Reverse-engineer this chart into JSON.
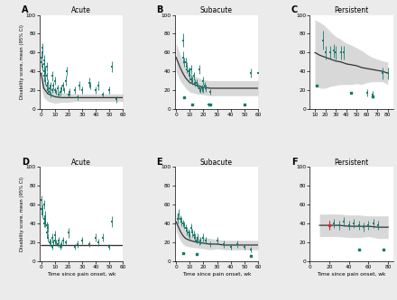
{
  "figure_background": "#ebebeb",
  "panel_background": "#ffffff",
  "panels": [
    {
      "label": "A",
      "title": "Acute",
      "row": 0,
      "col": 0,
      "xlim": [
        -1,
        60
      ],
      "ylim": [
        0,
        100
      ],
      "xticks": [
        0,
        10,
        20,
        30,
        40,
        50,
        60
      ],
      "yticks": [
        0,
        20,
        40,
        60,
        80,
        100
      ],
      "curve_color": "#333333",
      "ci_color": "#b8b8b8",
      "scatter_color": "#1a7a6e",
      "line_color": "#cc3333",
      "has_ci_band": true,
      "scatter_x": [
        0.5,
        0.5,
        1,
        1,
        1,
        2,
        2,
        2,
        2,
        3,
        3,
        3,
        4,
        4,
        4,
        5,
        5,
        6,
        6,
        7,
        7,
        8,
        8,
        9,
        10,
        10,
        11,
        12,
        13,
        14,
        15,
        16,
        17,
        18,
        19,
        20,
        21,
        25,
        27,
        28,
        30,
        35,
        36,
        40,
        42,
        45,
        50,
        52,
        55
      ],
      "scatter_y": [
        50,
        55,
        45,
        60,
        65,
        35,
        40,
        48,
        52,
        30,
        38,
        42,
        25,
        35,
        45,
        20,
        28,
        18,
        22,
        15,
        25,
        35,
        20,
        25,
        30,
        20,
        18,
        22,
        15,
        18,
        22,
        25,
        20,
        30,
        40,
        15,
        18,
        20,
        12,
        25,
        20,
        28,
        25,
        20,
        25,
        15,
        20,
        45,
        10
      ],
      "scatter_yerr": [
        5,
        5,
        4,
        5,
        5,
        4,
        4,
        5,
        5,
        4,
        4,
        4,
        4,
        4,
        5,
        4,
        4,
        3,
        4,
        3,
        4,
        5,
        3,
        4,
        4,
        3,
        3,
        4,
        3,
        4,
        4,
        4,
        3,
        5,
        5,
        3,
        4,
        4,
        3,
        5,
        4,
        5,
        4,
        4,
        5,
        3,
        4,
        6,
        3
      ],
      "curve_x": [
        0,
        2,
        5,
        10,
        15,
        20,
        25,
        30,
        35,
        40,
        45,
        50,
        55,
        60
      ],
      "curve_y": [
        38,
        22,
        16,
        13,
        12,
        12,
        12,
        12,
        12,
        12,
        12,
        12,
        12,
        12
      ],
      "ci_upper": [
        52,
        32,
        24,
        20,
        17,
        17,
        16,
        16,
        16,
        16,
        16,
        16,
        16,
        16
      ],
      "ci_lower": [
        24,
        12,
        8,
        6,
        7,
        7,
        8,
        8,
        8,
        8,
        8,
        8,
        8,
        8
      ]
    },
    {
      "label": "B",
      "title": "Subacute",
      "row": 0,
      "col": 1,
      "xlim": [
        -1,
        60
      ],
      "ylim": [
        0,
        100
      ],
      "xticks": [
        0,
        10,
        20,
        30,
        40,
        50,
        60
      ],
      "yticks": [
        0,
        20,
        40,
        60,
        80,
        100
      ],
      "curve_color": "#333333",
      "ci_color": "#b8b8b8",
      "scatter_color": "#1a7a6e",
      "line_color": "#cc3333",
      "has_ci_band": true,
      "scatter_x": [
        5,
        5,
        6,
        7,
        8,
        8,
        9,
        10,
        10,
        11,
        11,
        12,
        13,
        14,
        15,
        16,
        17,
        17,
        18,
        19,
        20,
        20,
        21,
        22,
        24,
        25,
        55,
        60
      ],
      "scatter_y": [
        73,
        55,
        50,
        50,
        42,
        45,
        40,
        40,
        35,
        32,
        42,
        30,
        35,
        28,
        28,
        25,
        22,
        42,
        20,
        22,
        20,
        30,
        25,
        22,
        5,
        18,
        38,
        38
      ],
      "scatter_yerr": [
        7,
        6,
        5,
        5,
        4,
        5,
        4,
        4,
        4,
        4,
        5,
        4,
        4,
        4,
        4,
        3,
        4,
        5,
        3,
        4,
        3,
        4,
        4,
        4,
        2,
        3,
        5,
        5
      ],
      "low_scatter_x": [
        6,
        12,
        25,
        50
      ],
      "low_scatter_y": [
        12,
        5,
        5,
        5
      ],
      "curve_x": [
        0,
        3,
        5,
        7,
        10,
        15,
        20,
        25,
        30,
        35,
        40,
        45,
        50,
        55,
        60
      ],
      "curve_y": [
        55,
        44,
        38,
        33,
        28,
        25,
        23,
        22,
        22,
        22,
        22,
        22,
        22,
        22,
        22
      ],
      "ci_upper": [
        70,
        58,
        50,
        44,
        38,
        34,
        31,
        30,
        30,
        30,
        30,
        30,
        30,
        30,
        30
      ],
      "ci_lower": [
        40,
        30,
        26,
        22,
        18,
        16,
        15,
        14,
        14,
        14,
        14,
        14,
        14,
        14,
        14
      ]
    },
    {
      "label": "C",
      "title": "Persistent",
      "row": 0,
      "col": 2,
      "xlim": [
        5,
        85
      ],
      "ylim": [
        0,
        100
      ],
      "xticks": [
        10,
        20,
        30,
        40,
        50,
        60,
        70,
        80
      ],
      "yticks": [
        0,
        20,
        40,
        60,
        80,
        100
      ],
      "curve_color": "#333333",
      "ci_color": "#b8b8b8",
      "scatter_color": "#1a7a6e",
      "line_color": "#cc3333",
      "has_ci_band": true,
      "scatter_x": [
        18,
        20,
        25,
        28,
        30,
        35,
        38,
        60,
        65,
        75,
        80
      ],
      "scatter_y": [
        73,
        60,
        60,
        62,
        60,
        60,
        60,
        17,
        15,
        38,
        38
      ],
      "scatter_yerr": [
        10,
        7,
        7,
        7,
        7,
        7,
        7,
        4,
        4,
        6,
        6
      ],
      "low_scatter_x": [
        12,
        45,
        65
      ],
      "low_scatter_y": [
        25,
        17,
        13
      ],
      "curve_x": [
        10,
        15,
        20,
        25,
        30,
        35,
        40,
        45,
        50,
        55,
        60,
        65,
        70,
        75,
        80
      ],
      "curve_y": [
        60,
        57,
        55,
        53,
        51,
        50,
        48,
        47,
        46,
        44,
        43,
        42,
        41,
        40,
        38
      ],
      "ci_upper": [
        95,
        92,
        88,
        82,
        77,
        74,
        70,
        68,
        65,
        62,
        58,
        55,
        53,
        51,
        50
      ],
      "ci_lower": [
        25,
        22,
        22,
        24,
        25,
        26,
        26,
        26,
        27,
        26,
        28,
        29,
        29,
        29,
        26
      ]
    },
    {
      "label": "D",
      "title": "Acute",
      "row": 1,
      "col": 0,
      "xlim": [
        -1,
        60
      ],
      "ylim": [
        0,
        100
      ],
      "xticks": [
        0,
        10,
        20,
        30,
        40,
        50,
        60
      ],
      "yticks": [
        0,
        20,
        40,
        60,
        80,
        100
      ],
      "curve_color": "#333333",
      "ci_color": "#b8b8b8",
      "scatter_color": "#1a7a6e",
      "line_color": "#cc3333",
      "has_ci_band": false,
      "scatter_x": [
        0.5,
        0.5,
        1,
        1,
        2,
        2,
        2,
        3,
        3,
        3,
        4,
        4,
        5,
        5,
        6,
        7,
        8,
        8,
        9,
        10,
        10,
        11,
        12,
        13,
        14,
        15,
        16,
        18,
        20,
        25,
        27,
        30,
        35,
        40,
        42,
        45,
        50,
        52
      ],
      "scatter_y": [
        65,
        55,
        50,
        55,
        60,
        40,
        45,
        40,
        45,
        48,
        30,
        38,
        25,
        35,
        20,
        20,
        15,
        25,
        20,
        22,
        28,
        20,
        18,
        22,
        15,
        18,
        22,
        20,
        30,
        15,
        18,
        22,
        18,
        25,
        20,
        25,
        15,
        42
      ],
      "scatter_yerr": [
        5,
        5,
        4,
        5,
        5,
        4,
        4,
        4,
        4,
        5,
        4,
        4,
        4,
        5,
        4,
        4,
        3,
        4,
        3,
        4,
        4,
        3,
        3,
        4,
        3,
        4,
        4,
        3,
        5,
        3,
        4,
        4,
        3,
        4,
        4,
        4,
        3,
        6
      ],
      "flat_line_y": 17,
      "curve_x": [
        0,
        60
      ],
      "curve_y": [
        17,
        17
      ],
      "ci_upper": [
        17,
        17
      ],
      "ci_lower": [
        17,
        17
      ]
    },
    {
      "label": "E",
      "title": "Subacute",
      "row": 1,
      "col": 1,
      "xlim": [
        -1,
        60
      ],
      "ylim": [
        0,
        100
      ],
      "xticks": [
        0,
        10,
        20,
        30,
        40,
        50,
        60
      ],
      "yticks": [
        0,
        20,
        40,
        60,
        80,
        100
      ],
      "curve_color": "#333333",
      "ci_color": "#b8b8b8",
      "scatter_color": "#1a7a6e",
      "line_color": "#cc3333",
      "has_ci_band": true,
      "scatter_x": [
        1,
        2,
        3,
        4,
        5,
        6,
        7,
        8,
        9,
        10,
        11,
        12,
        13,
        14,
        15,
        16,
        17,
        18,
        20,
        22,
        25,
        30,
        35,
        40,
        45,
        50,
        55
      ],
      "scatter_y": [
        45,
        50,
        45,
        42,
        40,
        38,
        35,
        32,
        30,
        28,
        35,
        30,
        28,
        25,
        22,
        25,
        20,
        22,
        25,
        22,
        18,
        22,
        18,
        15,
        18,
        15,
        12
      ],
      "scatter_yerr": [
        5,
        5,
        4,
        5,
        4,
        4,
        4,
        4,
        4,
        4,
        5,
        4,
        4,
        4,
        3,
        4,
        3,
        4,
        4,
        4,
        3,
        4,
        4,
        3,
        4,
        3,
        3
      ],
      "low_scatter_x": [
        5,
        15,
        55
      ],
      "low_scatter_y": [
        8,
        7,
        5
      ],
      "curve_x": [
        0,
        3,
        5,
        7,
        10,
        15,
        20,
        25,
        30,
        35,
        40,
        45,
        50,
        55,
        60
      ],
      "curve_y": [
        42,
        32,
        27,
        24,
        22,
        20,
        19,
        18,
        18,
        17,
        17,
        17,
        17,
        17,
        17
      ],
      "ci_upper": [
        52,
        42,
        36,
        32,
        29,
        26,
        25,
        24,
        23,
        22,
        22,
        22,
        22,
        22,
        22
      ],
      "ci_lower": [
        32,
        22,
        18,
        16,
        15,
        14,
        13,
        12,
        13,
        12,
        12,
        12,
        12,
        12,
        12
      ]
    },
    {
      "label": "F",
      "title": "Persistent",
      "row": 1,
      "col": 2,
      "xlim": [
        5,
        85
      ],
      "ylim": [
        0,
        100
      ],
      "xticks": [
        0,
        20,
        40,
        60,
        80
      ],
      "yticks": [
        0,
        20,
        40,
        60,
        80,
        100
      ],
      "curve_color": "#333333",
      "ci_color": "#b8b8b8",
      "scatter_color": "#1a7a6e",
      "line_color": "#cc3333",
      "has_ci_band": true,
      "scatter_x": [
        20,
        25,
        30,
        35,
        40,
        45,
        50,
        55,
        60,
        65,
        70
      ],
      "scatter_y": [
        38,
        40,
        38,
        42,
        38,
        40,
        38,
        36,
        38,
        40,
        38
      ],
      "scatter_yerr": [
        5,
        5,
        5,
        5,
        5,
        5,
        5,
        5,
        5,
        5,
        5
      ],
      "low_scatter_x": [
        50,
        75
      ],
      "low_scatter_y": [
        12,
        12
      ],
      "red_point_x": [
        20
      ],
      "red_point_y": [
        38
      ],
      "curve_x": [
        10,
        20,
        30,
        40,
        50,
        60,
        70,
        80
      ],
      "curve_y": [
        38,
        38,
        38,
        37,
        37,
        37,
        36,
        36
      ],
      "ci_upper": [
        50,
        50,
        50,
        49,
        49,
        48,
        48,
        48
      ],
      "ci_lower": [
        26,
        26,
        26,
        25,
        25,
        26,
        24,
        24
      ]
    }
  ],
  "xlabel": "Time since pain onset, wk",
  "ylabel": "Disability score, mean (95% CI)"
}
